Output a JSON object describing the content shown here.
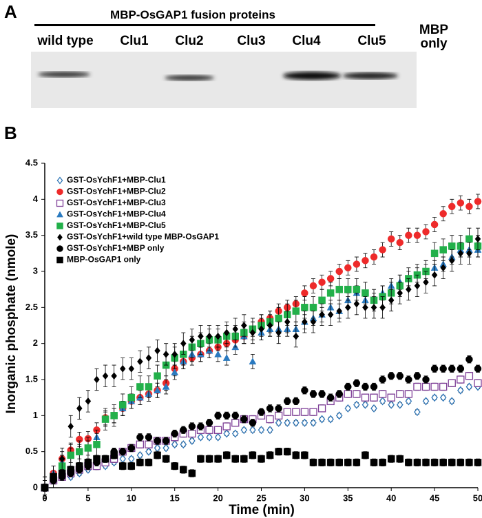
{
  "panel_a": {
    "label": "A",
    "title": "MBP-OsGAP1 fusion proteins",
    "lanes": [
      "wild type",
      "Clu1",
      "Clu2",
      "Clu3",
      "Clu4",
      "Clu5",
      "MBP only"
    ]
  },
  "chart_data": {
    "type": "scatter",
    "panel_label": "B",
    "x_label": "Time (min)",
    "y_label": "Inorganic phosphate (nmole)",
    "xlim": [
      0,
      50
    ],
    "xticks": [
      0,
      5,
      10,
      15,
      20,
      25,
      30,
      35,
      40,
      45,
      50
    ],
    "ylim": [
      0,
      4.5
    ],
    "yticks": [
      0,
      0.5,
      1,
      1.5,
      2,
      2.5,
      3,
      3.5,
      4,
      4.5
    ],
    "legend": "upper left",
    "x": [
      0,
      1,
      2,
      3,
      4,
      5,
      6,
      7,
      8,
      9,
      10,
      11,
      12,
      13,
      14,
      15,
      16,
      17,
      18,
      19,
      20,
      21,
      22,
      23,
      24,
      25,
      26,
      27,
      28,
      29,
      30,
      31,
      32,
      33,
      34,
      35,
      36,
      37,
      38,
      39,
      40,
      41,
      42,
      43,
      44,
      45,
      46,
      47,
      48,
      49,
      50
    ],
    "series": [
      {
        "name": "GST-OsYchF1+MBP-Clu1",
        "color": "#2e75b6",
        "marker": "open-diamond",
        "error": 0.03,
        "values": [
          0,
          0.1,
          0.15,
          0.15,
          0.2,
          0.25,
          0.3,
          0.3,
          0.35,
          0.4,
          0.4,
          0.45,
          0.5,
          0.55,
          0.55,
          0.6,
          0.6,
          0.65,
          0.7,
          0.7,
          0.7,
          0.75,
          0.75,
          0.8,
          0.8,
          0.8,
          0.8,
          0.9,
          0.9,
          0.9,
          0.9,
          0.9,
          0.95,
          0.95,
          1.0,
          1.1,
          1.15,
          1.15,
          1.1,
          1.2,
          1.15,
          1.15,
          1.2,
          1.05,
          1.2,
          1.25,
          1.25,
          1.2,
          1.35,
          1.4,
          1.4
        ]
      },
      {
        "name": "GST-OsYchF1+MBP-Clu2",
        "color": "#ee2a2a",
        "marker": "circle",
        "error": 0.1,
        "values": [
          0,
          0.2,
          0.4,
          0.52,
          0.67,
          0.68,
          0.8,
          0.97,
          1.0,
          1.1,
          1.2,
          1.25,
          1.3,
          1.35,
          1.45,
          1.65,
          1.75,
          1.8,
          1.85,
          1.9,
          1.95,
          2.0,
          2.05,
          2.1,
          2.2,
          2.3,
          2.35,
          2.45,
          2.5,
          2.55,
          2.7,
          2.8,
          2.85,
          2.9,
          3.0,
          3.05,
          3.1,
          3.15,
          3.2,
          3.3,
          3.45,
          3.4,
          3.5,
          3.5,
          3.55,
          3.65,
          3.8,
          3.9,
          3.95,
          3.9,
          3.97
        ]
      },
      {
        "name": "GST-OsYchF1+MBP-Clu3",
        "color": "#7f3f98",
        "marker": "open-square",
        "error": 0.05,
        "values": [
          0,
          0.1,
          0.15,
          0.2,
          0.25,
          0.3,
          0.3,
          0.35,
          0.4,
          0.5,
          0.55,
          0.6,
          0.6,
          0.65,
          0.65,
          0.7,
          0.75,
          0.75,
          0.8,
          0.8,
          0.8,
          0.85,
          0.9,
          0.95,
          0.95,
          1.0,
          0.95,
          1.0,
          1.05,
          1.05,
          1.05,
          1.05,
          1.1,
          1.2,
          1.25,
          1.3,
          1.3,
          1.25,
          1.25,
          1.3,
          1.25,
          1.3,
          1.3,
          1.4,
          1.4,
          1.4,
          1.4,
          1.45,
          1.5,
          1.55,
          1.45
        ]
      },
      {
        "name": "GST-OsYchF1+MBP-Clu4",
        "color": "#2a7ac0",
        "marker": "triangle",
        "error": 0.1,
        "values": [
          0,
          0.2,
          0.35,
          0.45,
          0.5,
          0.55,
          0.7,
          0.95,
          1.0,
          1.1,
          1.2,
          1.25,
          1.3,
          1.35,
          1.4,
          1.6,
          1.75,
          1.85,
          1.85,
          1.9,
          1.85,
          1.8,
          1.95,
          2.1,
          1.75,
          2.15,
          2.2,
          2.2,
          2.2,
          2.2,
          2.3,
          2.35,
          2.4,
          2.5,
          2.45,
          2.6,
          2.7,
          2.6,
          2.6,
          2.7,
          2.8,
          2.85,
          2.9,
          2.95,
          3.0,
          3.05,
          3.1,
          3.2,
          3.3,
          3.3,
          3.3
        ]
      },
      {
        "name": "GST-OsYchF1+MBP-Clu5",
        "color": "#22b04a",
        "marker": "square",
        "error": 0.15,
        "values": [
          0,
          0.15,
          0.3,
          0.45,
          0.5,
          0.55,
          0.6,
          0.95,
          1.0,
          1.15,
          1.25,
          1.4,
          1.4,
          1.55,
          1.7,
          1.8,
          1.85,
          1.95,
          2.0,
          2.05,
          2.05,
          2.1,
          2.1,
          2.15,
          2.2,
          2.25,
          2.3,
          2.35,
          2.4,
          2.45,
          2.5,
          2.5,
          2.6,
          2.7,
          2.75,
          2.75,
          2.75,
          2.7,
          2.6,
          2.65,
          2.7,
          2.8,
          2.9,
          2.95,
          3.0,
          3.25,
          3.3,
          3.35,
          3.35,
          3.45,
          3.35
        ]
      },
      {
        "name": "GST-OsYchF1+wild type MBP-OsGAP1",
        "color": "#000000",
        "marker": "diamond",
        "error": 0.15,
        "values": [
          0,
          0.15,
          0.4,
          0.85,
          1.1,
          1.2,
          1.5,
          1.55,
          1.55,
          1.65,
          1.65,
          1.75,
          1.8,
          1.9,
          1.85,
          1.85,
          2.0,
          2.05,
          2.1,
          2.1,
          2.1,
          2.15,
          2.2,
          2.25,
          2.15,
          2.2,
          2.25,
          2.15,
          2.3,
          2.1,
          2.3,
          2.3,
          2.4,
          2.4,
          2.45,
          2.5,
          2.55,
          2.5,
          2.5,
          2.5,
          2.6,
          2.7,
          2.75,
          2.8,
          2.85,
          2.95,
          3.05,
          3.15,
          3.25,
          3.25,
          3.45
        ]
      },
      {
        "name": "GST-OsYchF1+MBP only",
        "color": "#000000",
        "marker": "circle",
        "error": 0.05,
        "values": [
          0,
          0.1,
          0.15,
          0.2,
          0.25,
          0.3,
          0.35,
          0.4,
          0.5,
          0.5,
          0.55,
          0.7,
          0.7,
          0.65,
          0.65,
          0.75,
          0.8,
          0.85,
          0.85,
          0.9,
          1.0,
          1.0,
          1.0,
          0.95,
          0.9,
          1.05,
          1.1,
          1.1,
          1.2,
          1.2,
          1.35,
          1.3,
          1.3,
          1.25,
          1.3,
          1.4,
          1.45,
          1.4,
          1.4,
          1.5,
          1.55,
          1.55,
          1.5,
          1.55,
          1.5,
          1.65,
          1.65,
          1.65,
          1.65,
          1.78,
          1.65
        ]
      },
      {
        "name": "MBP-OsGAP1 only",
        "color": "#000000",
        "marker": "square",
        "error": 0.05,
        "values": [
          0,
          0.15,
          0.2,
          0.25,
          0.3,
          0.35,
          0.4,
          0.4,
          0.45,
          0.3,
          0.3,
          0.35,
          0.35,
          0.45,
          0.4,
          0.3,
          0.25,
          0.2,
          0.4,
          0.4,
          0.4,
          0.45,
          0.4,
          0.4,
          0.45,
          0.4,
          0.45,
          0.5,
          0.5,
          0.45,
          0.45,
          0.35,
          0.35,
          0.35,
          0.35,
          0.35,
          0.35,
          0.45,
          0.35,
          0.35,
          0.4,
          0.4,
          0.35,
          0.35,
          0.35,
          0.35,
          0.35,
          0.35,
          0.35,
          0.35,
          0.35
        ]
      }
    ]
  }
}
